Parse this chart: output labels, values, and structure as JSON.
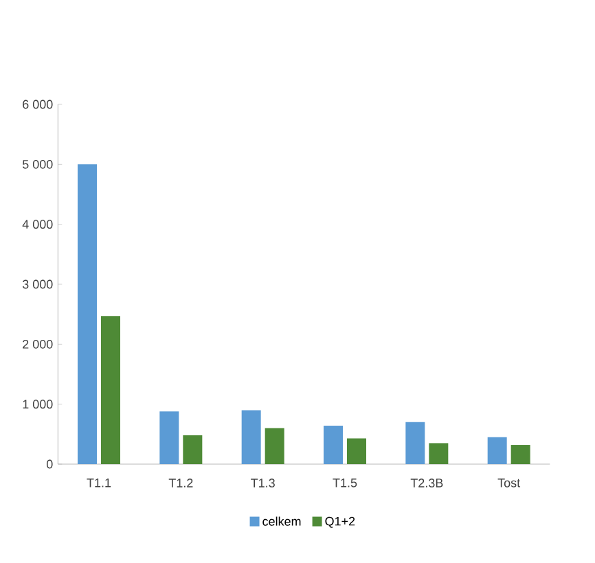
{
  "chart_data": {
    "type": "bar",
    "categories": [
      "T1.1",
      "T1.2",
      "T1.3",
      "T1.5",
      "T2.3B",
      "Tost"
    ],
    "series": [
      {
        "name": "celkem",
        "color": "#5b9bd5",
        "values": [
          5000,
          880,
          900,
          640,
          700,
          450
        ]
      },
      {
        "name": "Q1+2",
        "color": "#4e8a36",
        "values": [
          2470,
          480,
          600,
          430,
          350,
          320
        ]
      }
    ],
    "ylim": [
      0,
      6000
    ],
    "yticks": [
      0,
      {
        "value": 1000,
        "label": "1 000"
      },
      {
        "value": 2000,
        "label": "2 000"
      },
      {
        "value": 3000,
        "label": "3 000"
      },
      {
        "value": 4000,
        "label": "4 000"
      },
      {
        "value": 5000,
        "label": "5 000"
      },
      {
        "value": 6000,
        "label": "6 000"
      }
    ],
    "legend": "bottom"
  }
}
